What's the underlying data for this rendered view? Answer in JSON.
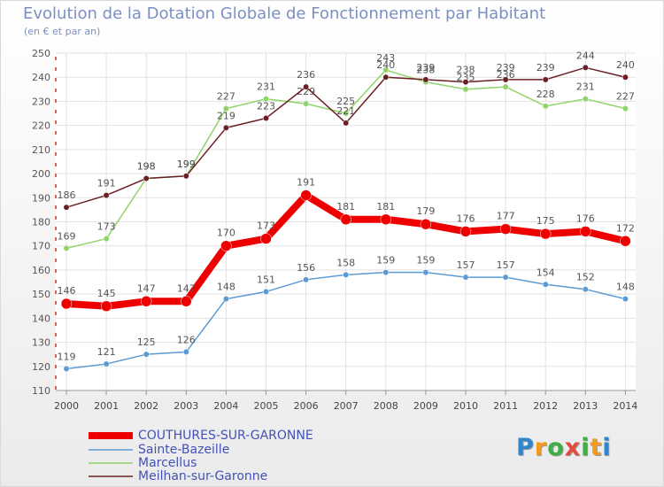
{
  "header": {
    "title": "Evolution de la Dotation Globale de Fonctionnement par Habitant",
    "subtitle": "(en € et par an)"
  },
  "logo": {
    "text": "Proxiti",
    "colors": [
      "#2f86c9",
      "#f39a1c",
      "#3fae49",
      "#e64b3c",
      "#3fae49",
      "#f39a1c",
      "#2f86c9"
    ]
  },
  "chart_data": {
    "type": "line",
    "title": "Evolution de la Dotation Globale de Fonctionnement par Habitant",
    "subtitle": "(en € et par an)",
    "xlabel": "",
    "ylabel": "",
    "x": [
      "2000",
      "2001",
      "2002",
      "2003",
      "2004",
      "2005",
      "2006",
      "2007",
      "2008",
      "2009",
      "2010",
      "2011",
      "2012",
      "2013",
      "2014"
    ],
    "ylim": [
      110,
      250
    ],
    "yticks": [
      "110",
      "120",
      "130",
      "140",
      "150",
      "160",
      "170",
      "180",
      "190",
      "200",
      "210",
      "220",
      "230",
      "240",
      "250"
    ],
    "grid": true,
    "legend_position": "bottom-left",
    "series": [
      {
        "name": "Marcellus",
        "color": "#8fd46a",
        "values": [
          169,
          173,
          198,
          199,
          227,
          231,
          229,
          225,
          243,
          238,
          235,
          236,
          228,
          231,
          227
        ]
      },
      {
        "name": "Meilhan-sur-Garonne",
        "color": "#6b1f24",
        "values": [
          186,
          191,
          198,
          199,
          219,
          223,
          236,
          221,
          240,
          239,
          238,
          239,
          239,
          244,
          240
        ]
      },
      {
        "name": "Sainte-Bazeille",
        "color": "#5b9bd4",
        "values": [
          119,
          121,
          125,
          126,
          148,
          151,
          156,
          158,
          159,
          159,
          157,
          157,
          154,
          152,
          148
        ]
      },
      {
        "name": "COUTHURES-SUR-GARONNE",
        "color": "#ee0000",
        "values": [
          146,
          145,
          147,
          147,
          170,
          173,
          191,
          181,
          181,
          179,
          176,
          177,
          175,
          176,
          172
        ]
      }
    ],
    "legend": [
      "COUTHURES-SUR-GARONNE",
      "Sainte-Bazeille",
      "Marcellus",
      "Meilhan-sur-Garonne"
    ]
  }
}
